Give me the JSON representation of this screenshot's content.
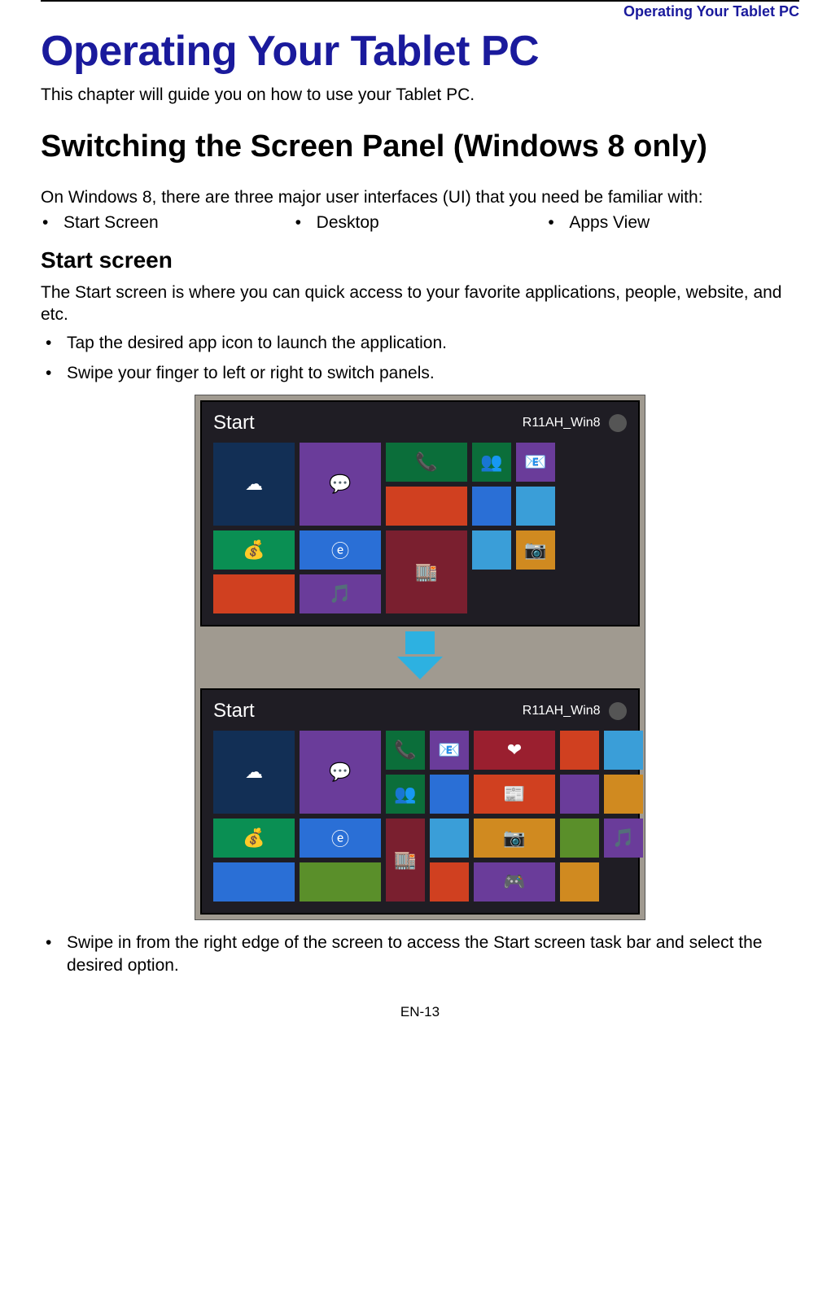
{
  "header": {
    "running": "Operating Your Tablet PC"
  },
  "colors": {
    "title_color": "#1a1a9c",
    "black": "#000000",
    "arrow": "#2db1e1"
  },
  "title": "Operating Your Tablet PC",
  "intro": "This chapter will guide you on how to use your Tablet PC.",
  "section1_title": "Switching the Screen Panel (Windows 8 only)",
  "section1_text": "On Windows 8, there are three major user interfaces (UI) that you need be familiar with:",
  "ui_items": [
    "Start Screen",
    "Desktop",
    "Apps View"
  ],
  "subsection_title": "Start screen",
  "subsection_text": "The Start screen is where you can quick access to your favorite applications, people, website, and etc.",
  "bullets_a": [
    "Tap the desired app icon to launch the application.",
    "Swipe your finger to left or right to switch panels."
  ],
  "bullets_b": [
    "Swipe in from the right edge of the screen to access the Start screen task bar and select the desired option."
  ],
  "figure": {
    "panel_bg": "#1f1d24",
    "label": "Start",
    "user_label": "R11AH_Win8",
    "screen1_tiles": [
      {
        "bg": "#122f55",
        "span2": true,
        "glyph": "☁"
      },
      {
        "bg": "#6a3c9a",
        "span2": true,
        "glyph": "💬"
      },
      {
        "bg": "#0b6e3a",
        "glyph": "📞"
      },
      {
        "bg": "#0b6e3a",
        "glyph": "👥"
      },
      {
        "bg": "#6a3c9a",
        "glyph": "📧"
      },
      {
        "bg": "#d04020",
        "glyph": ""
      },
      {
        "bg": "#2a6fd6",
        "glyph": ""
      },
      {
        "bg": "#3a9ed8",
        "glyph": ""
      },
      {
        "bg": "#0a8f53",
        "glyph": "💰"
      },
      {
        "bg": "#2a6fd6",
        "glyph": "ⓔ"
      },
      {
        "bg": "#7a1f2f",
        "span2": true,
        "glyph": "🏬"
      },
      {
        "bg": "#3a9ed8",
        "glyph": ""
      },
      {
        "bg": "#d08a20",
        "glyph": "📷"
      },
      {
        "bg": "#d04020",
        "glyph": ""
      },
      {
        "bg": "#6a3c9a",
        "glyph": "🎵"
      }
    ],
    "screen2_tiles": [
      {
        "bg": "#122f55",
        "span2": true,
        "glyph": "☁"
      },
      {
        "bg": "#6a3c9a",
        "span2": true,
        "glyph": "💬"
      },
      {
        "bg": "#0b6e3a",
        "glyph": "📞"
      },
      {
        "bg": "#6a3c9a",
        "glyph": "📧"
      },
      {
        "bg": "#9a1f2f",
        "glyph": "❤"
      },
      {
        "bg": "#d04020",
        "glyph": ""
      },
      {
        "bg": "#3a9ed8",
        "glyph": ""
      },
      {
        "bg": "#0b6e3a",
        "glyph": "👥"
      },
      {
        "bg": "#2a6fd6",
        "glyph": ""
      },
      {
        "bg": "#d04020",
        "glyph": "📰"
      },
      {
        "bg": "#6a3c9a",
        "glyph": ""
      },
      {
        "bg": "#d08a20",
        "glyph": ""
      },
      {
        "bg": "#0a8f53",
        "glyph": "💰"
      },
      {
        "bg": "#2a6fd6",
        "glyph": "ⓔ"
      },
      {
        "bg": "#7a1f2f",
        "span2": true,
        "glyph": "🏬"
      },
      {
        "bg": "#3a9ed8",
        "glyph": ""
      },
      {
        "bg": "#d08a20",
        "glyph": "📷"
      },
      {
        "bg": "#5a8f2a",
        "glyph": ""
      },
      {
        "bg": "#6a3c9a",
        "glyph": "🎵"
      },
      {
        "bg": "#2a6fd6",
        "glyph": ""
      },
      {
        "bg": "#5a8f2a",
        "glyph": ""
      },
      {
        "bg": "#d04020",
        "glyph": ""
      },
      {
        "bg": "#6a3c9a",
        "glyph": "🎮"
      },
      {
        "bg": "#d08a20",
        "glyph": ""
      }
    ]
  },
  "page_number": "EN-13"
}
